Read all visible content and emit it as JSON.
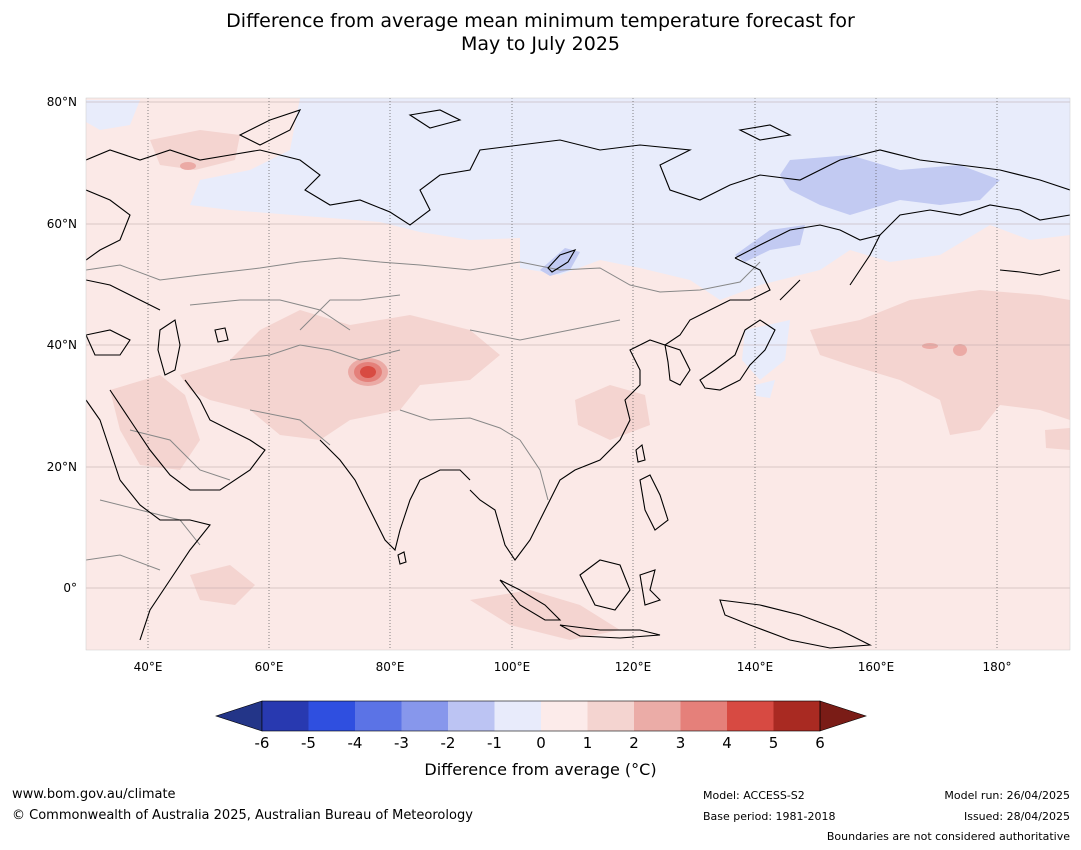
{
  "title": {
    "line1": "Difference from average mean minimum temperature forecast for",
    "line2": "May to July 2025"
  },
  "map": {
    "lat_labels": [
      "80°N",
      "60°N",
      "40°N",
      "20°N",
      "0°"
    ],
    "lon_labels": [
      "40°E",
      "60°E",
      "80°E",
      "100°E",
      "120°E",
      "140°E",
      "160°E",
      "180°"
    ],
    "colors": {
      "background_anomaly": "#fbe9e7",
      "warm_1_2": "#f4d4d0",
      "warm_2_3": "#ebaaa5",
      "warm_3_4": "#e4807a",
      "warm_4_5": "#d84b42",
      "cool_0_1": "#e8ecfb",
      "cool_1_2": "#c2caf2",
      "coastline": "#000000",
      "borders": "#888888"
    }
  },
  "colorbar": {
    "ticks": [
      "-6",
      "-5",
      "-4",
      "-3",
      "-2",
      "-1",
      "0",
      "1",
      "2",
      "3",
      "4",
      "5",
      "6"
    ],
    "colors": [
      "#233588",
      "#2839b0",
      "#2f4fe0",
      "#5b73e6",
      "#8797ec",
      "#bcc4f3",
      "#e8ebfb",
      "#fcebea",
      "#f4d4d0",
      "#ebaca7",
      "#e5807a",
      "#d74a42",
      "#a92a22",
      "#7a1c16"
    ],
    "label": "Difference from average (°C)"
  },
  "footer": {
    "website": "www.bom.gov.au/climate",
    "copyright": "© Commonwealth of Australia 2025, Australian Bureau of Meteorology",
    "model": "Model: ACCESS-S2",
    "base_period": "Base period: 1981-2018",
    "model_run": "Model run: 26/04/2025",
    "issued": "Issued: 28/04/2025",
    "disclaimer": "Boundaries are not considered authoritative"
  }
}
